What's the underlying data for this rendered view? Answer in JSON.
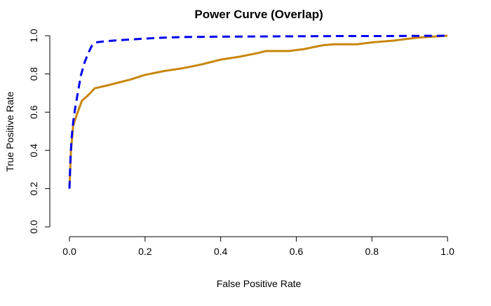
{
  "chart_data": {
    "type": "line",
    "title": "Power Curve (Overlap)",
    "xlabel": "False Positive Rate",
    "ylabel": "True Positive Rate",
    "xlim": [
      0,
      1
    ],
    "ylim": [
      0,
      1
    ],
    "xticks": [
      0.0,
      0.2,
      0.4,
      0.6,
      0.8,
      1.0
    ],
    "xtick_labels": [
      "0.0",
      "0.2",
      "0.4",
      "0.6",
      "0.8",
      "1.0"
    ],
    "yticks": [
      0.0,
      0.2,
      0.4,
      0.6,
      0.8,
      1.0
    ],
    "ytick_labels": [
      "0.0",
      "0.2",
      "0.4",
      "0.6",
      "0.8",
      "1.0"
    ],
    "grid": false,
    "legend": "none",
    "series": [
      {
        "color": "#0000ee",
        "line_style": "dashed",
        "points": [
          [
            0.0,
            0.2
          ],
          [
            0.003,
            0.37
          ],
          [
            0.006,
            0.47
          ],
          [
            0.01,
            0.55
          ],
          [
            0.015,
            0.62
          ],
          [
            0.022,
            0.7
          ],
          [
            0.03,
            0.79
          ],
          [
            0.04,
            0.86
          ],
          [
            0.05,
            0.91
          ],
          [
            0.06,
            0.95
          ],
          [
            0.07,
            0.965
          ],
          [
            0.09,
            0.97
          ],
          [
            0.12,
            0.975
          ],
          [
            0.16,
            0.98
          ],
          [
            0.2,
            0.985
          ],
          [
            0.25,
            0.99
          ],
          [
            0.3,
            0.993
          ],
          [
            0.4,
            0.995
          ],
          [
            0.5,
            0.996
          ],
          [
            0.6,
            0.997
          ],
          [
            0.7,
            0.998
          ],
          [
            0.8,
            0.998
          ],
          [
            0.9,
            0.999
          ],
          [
            1.0,
            1.0
          ]
        ]
      },
      {
        "color": "#c8860a",
        "line_style": "solid",
        "points": [
          [
            0.0,
            0.2
          ],
          [
            0.004,
            0.4
          ],
          [
            0.01,
            0.53
          ],
          [
            0.02,
            0.59
          ],
          [
            0.033,
            0.66
          ],
          [
            0.05,
            0.69
          ],
          [
            0.067,
            0.725
          ],
          [
            0.1,
            0.74
          ],
          [
            0.13,
            0.755
          ],
          [
            0.16,
            0.77
          ],
          [
            0.2,
            0.795
          ],
          [
            0.25,
            0.815
          ],
          [
            0.3,
            0.83
          ],
          [
            0.35,
            0.85
          ],
          [
            0.4,
            0.875
          ],
          [
            0.45,
            0.89
          ],
          [
            0.5,
            0.91
          ],
          [
            0.52,
            0.92
          ],
          [
            0.58,
            0.92
          ],
          [
            0.62,
            0.93
          ],
          [
            0.67,
            0.95
          ],
          [
            0.7,
            0.955
          ],
          [
            0.76,
            0.955
          ],
          [
            0.8,
            0.965
          ],
          [
            0.86,
            0.975
          ],
          [
            0.92,
            0.99
          ],
          [
            1.0,
            1.0
          ]
        ]
      }
    ]
  }
}
